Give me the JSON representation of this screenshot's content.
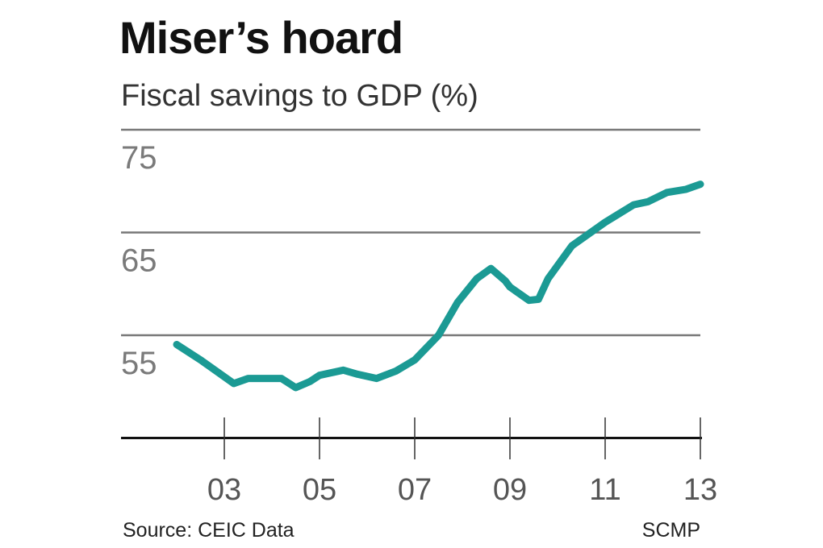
{
  "chart_data": {
    "type": "line",
    "title": "Miser’s hoard",
    "subtitle": "Fiscal savings to GDP (%)",
    "source": "Source: CEIC Data",
    "credit": "SCMP",
    "xlabel": "",
    "ylabel": "",
    "xlim": [
      2001,
      2013
    ],
    "ylim": [
      45,
      75
    ],
    "yticks": [
      55,
      65,
      75
    ],
    "ytick_labels": [
      "55",
      "65",
      "75"
    ],
    "xticks": [
      2003,
      2005,
      2007,
      2009,
      2011,
      2013
    ],
    "xtick_labels": [
      "03",
      "05",
      "07",
      "09",
      "11",
      "13"
    ],
    "grid": true,
    "line_color": "#1b9a94",
    "series": [
      {
        "x": [
          2002.0,
          2002.5,
          2003.2,
          2003.5,
          2004.2,
          2004.5,
          2004.8,
          2005.0,
          2005.5,
          2005.8,
          2006.2,
          2006.6,
          2007.0,
          2007.5,
          2007.9,
          2008.3,
          2008.6,
          2008.9,
          2009.0,
          2009.4,
          2009.6,
          2009.8,
          2010.3,
          2011.0,
          2011.6,
          2011.9,
          2012.3,
          2012.7,
          2013.0
        ],
        "y": [
          54.1,
          52.6,
          50.3,
          50.8,
          50.8,
          49.9,
          50.5,
          51.1,
          51.6,
          51.2,
          50.8,
          51.5,
          52.6,
          55.0,
          58.2,
          60.5,
          61.5,
          60.3,
          59.7,
          58.4,
          58.5,
          60.5,
          63.7,
          66.0,
          67.7,
          68.0,
          68.9,
          69.2,
          69.7
        ]
      }
    ]
  }
}
